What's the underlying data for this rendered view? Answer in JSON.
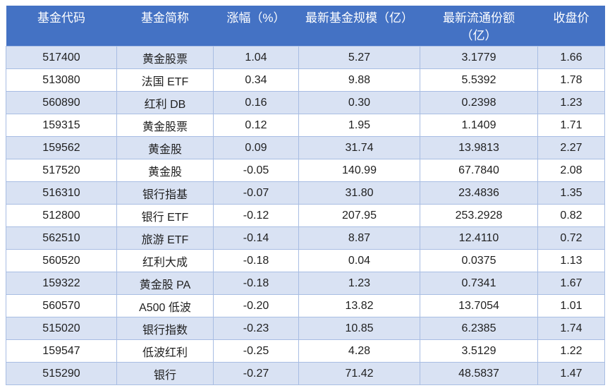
{
  "colors": {
    "header_bg": "#4472C4",
    "header_text": "#FFFFFF",
    "row_shaded": "#D9E2F3",
    "row_plain": "#FFFFFF",
    "border": "#A8BDE3",
    "text": "#1F1F1F"
  },
  "table": {
    "columns": [
      {
        "key": "code",
        "label": "基金代码"
      },
      {
        "key": "name",
        "label": "基金简称"
      },
      {
        "key": "change",
        "label": "涨幅（%）"
      },
      {
        "key": "scale",
        "label": "最新基金规模（亿）"
      },
      {
        "key": "shares",
        "label": "最新流通份额",
        "label2": "（亿）"
      },
      {
        "key": "close",
        "label": "收盘价"
      }
    ],
    "rows": [
      {
        "code": "517400",
        "name": "黄金股票",
        "change": "1.04",
        "scale": "5.27",
        "shares": "3.1779",
        "close": "1.66"
      },
      {
        "code": "513080",
        "name": "法国 ETF",
        "change": "0.34",
        "scale": "9.88",
        "shares": "5.5392",
        "close": "1.78"
      },
      {
        "code": "560890",
        "name": "红利 DB",
        "change": "0.16",
        "scale": "0.30",
        "shares": "0.2398",
        "close": "1.23"
      },
      {
        "code": "159315",
        "name": "黄金股票",
        "change": "0.12",
        "scale": "1.95",
        "shares": "1.1409",
        "close": "1.71"
      },
      {
        "code": "159562",
        "name": "黄金股",
        "change": "0.09",
        "scale": "31.74",
        "shares": "13.9813",
        "close": "2.27"
      },
      {
        "code": "517520",
        "name": "黄金股",
        "change": "-0.05",
        "scale": "140.99",
        "shares": "67.7840",
        "close": "2.08"
      },
      {
        "code": "516310",
        "name": "银行指基",
        "change": "-0.07",
        "scale": "31.80",
        "shares": "23.4836",
        "close": "1.35"
      },
      {
        "code": "512800",
        "name": "银行 ETF",
        "change": "-0.12",
        "scale": "207.95",
        "shares": "253.2928",
        "close": "0.82"
      },
      {
        "code": "562510",
        "name": "旅游 ETF",
        "change": "-0.14",
        "scale": "8.87",
        "shares": "12.4110",
        "close": "0.72"
      },
      {
        "code": "560520",
        "name": "红利大成",
        "change": "-0.18",
        "scale": "0.04",
        "shares": "0.0375",
        "close": "1.13"
      },
      {
        "code": "159322",
        "name": "黄金股 PA",
        "change": "-0.18",
        "scale": "1.23",
        "shares": "0.7341",
        "close": "1.67"
      },
      {
        "code": "560570",
        "name": "A500 低波",
        "change": "-0.20",
        "scale": "13.82",
        "shares": "13.7054",
        "close": "1.01"
      },
      {
        "code": "515020",
        "name": "银行指数",
        "change": "-0.23",
        "scale": "10.85",
        "shares": "6.2385",
        "close": "1.74"
      },
      {
        "code": "159547",
        "name": "低波红利",
        "change": "-0.25",
        "scale": "4.28",
        "shares": "3.5129",
        "close": "1.22"
      },
      {
        "code": "515290",
        "name": "银行",
        "change": "-0.27",
        "scale": "71.42",
        "shares": "48.5837",
        "close": "1.47"
      }
    ]
  }
}
